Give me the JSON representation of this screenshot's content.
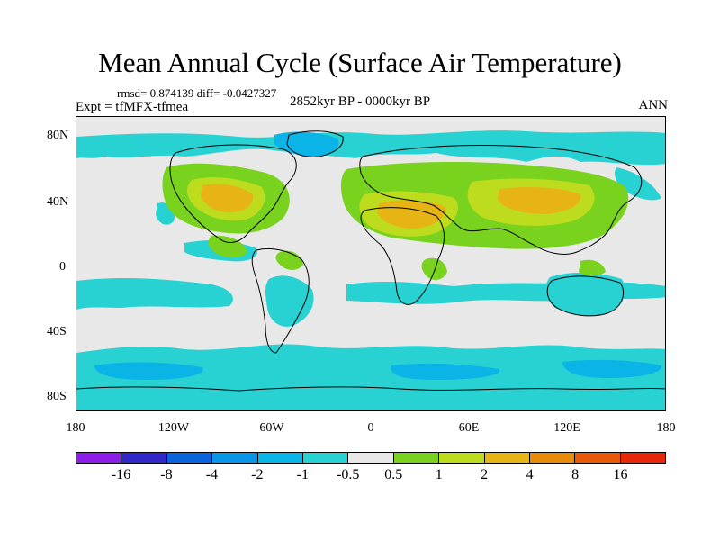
{
  "title": "Mean Annual Cycle (Surface Air Temperature)",
  "stats": "rmsd= 0.874139 diff= -0.0427327",
  "experiment": "Expt = tfMFX-tfmea",
  "period": "2852kyr BP - 0000kyr BP",
  "season": "ANN",
  "lat_labels": [
    "80N",
    "40N",
    "0",
    "40S",
    "80S"
  ],
  "lon_labels": [
    "180",
    "120W",
    "60W",
    "0",
    "60E",
    "120E",
    "180"
  ],
  "colorbar": {
    "colors": [
      "#8c1ee6",
      "#3228c8",
      "#0a64dc",
      "#0a96e6",
      "#0ab4e6",
      "#28d2d2",
      "#e8e8e8",
      "#78d21e",
      "#bedc1e",
      "#e6b414",
      "#e68c0a",
      "#e65a0a",
      "#e6280a"
    ],
    "labels": [
      "-16",
      "-8",
      "-4",
      "-2",
      "-1",
      "-0.5",
      "0.5",
      "1",
      "2",
      "4",
      "8",
      "16"
    ]
  },
  "map_legend": {
    "background_color": "#e8e8e8",
    "cyan_color": "#28d2d2",
    "cyan_light_color": "#0ab4e6",
    "green_color": "#78d21e",
    "yellow_color": "#bedc1e",
    "orange_color": "#e6b414"
  }
}
